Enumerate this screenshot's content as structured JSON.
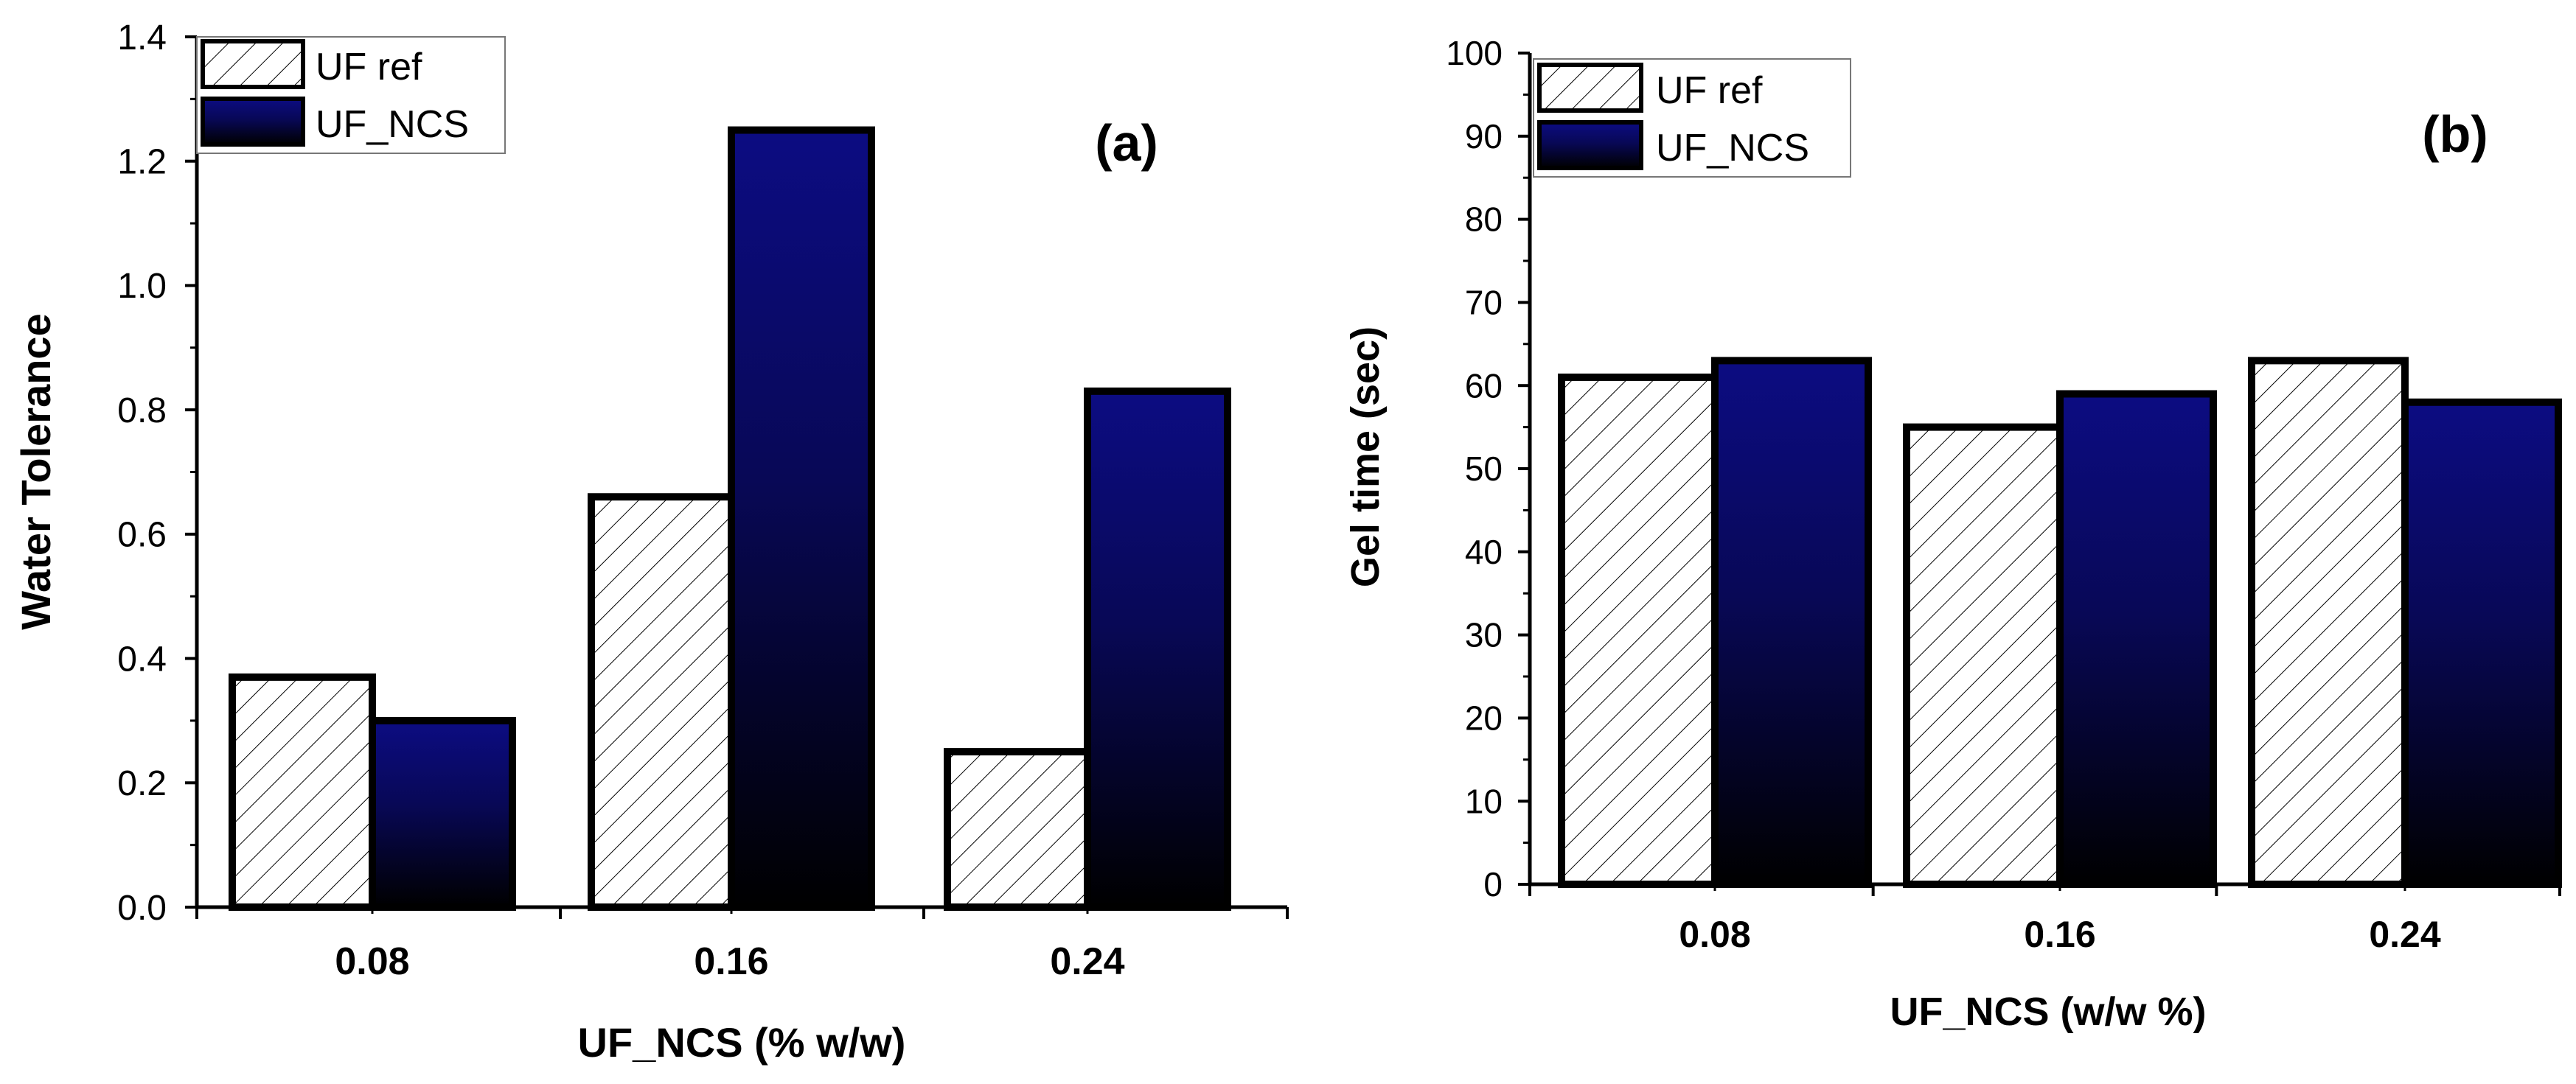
{
  "chart_data": [
    {
      "panel_label": "(a)",
      "type": "bar",
      "categories": [
        "0.08",
        "0.16",
        "0.24"
      ],
      "series": [
        {
          "name": "UF ref",
          "values": [
            0.37,
            0.66,
            0.25
          ],
          "fill": "hatch"
        },
        {
          "name": "UF_NCS",
          "values": [
            0.3,
            1.25,
            0.83
          ],
          "fill": "navy-gradient"
        }
      ],
      "title": "",
      "xlabel": "UF_NCS (% w/w)",
      "ylabel": "Water Tolerance",
      "ylim": [
        0,
        1.4
      ],
      "yticks": [
        0.0,
        0.2,
        0.4,
        0.6,
        0.8,
        1.0,
        1.2,
        1.4
      ],
      "ytick_labels": [
        "0.0",
        "0.2",
        "0.4",
        "0.6",
        "0.8",
        "1.0",
        "1.2",
        "1.4"
      ],
      "legend_position": "top-left",
      "grid": false
    },
    {
      "panel_label": "(b)",
      "type": "bar",
      "categories": [
        "0.08",
        "0.16",
        "0.24"
      ],
      "series": [
        {
          "name": "UF ref",
          "values": [
            61,
            55,
            63
          ],
          "fill": "hatch"
        },
        {
          "name": "UF_NCS",
          "values": [
            63,
            59,
            58
          ],
          "fill": "navy-gradient"
        }
      ],
      "title": "",
      "xlabel": "UF_NCS (w/w %)",
      "ylabel": "Gel time (sec)",
      "ylim": [
        0,
        100
      ],
      "yticks": [
        0,
        10,
        20,
        30,
        40,
        50,
        60,
        70,
        80,
        90,
        100
      ],
      "ytick_labels": [
        "0",
        "10",
        "20",
        "30",
        "40",
        "50",
        "60",
        "70",
        "80",
        "90",
        "100"
      ],
      "legend_position": "top-left",
      "grid": false
    }
  ],
  "colors": {
    "navy_top": "#0c0c82",
    "navy_bottom": "#000000",
    "hatch_bg": "#ffffff",
    "ink": "#000000"
  }
}
